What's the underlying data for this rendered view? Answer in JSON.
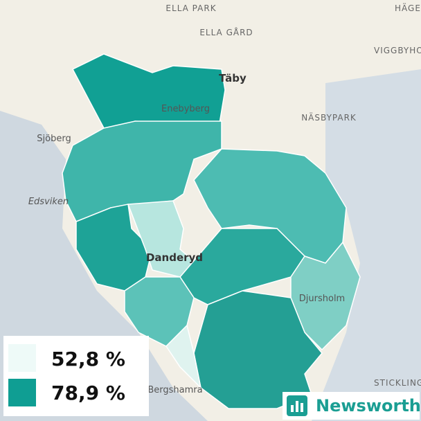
{
  "map": {
    "places": [
      "ELLA PARK",
      "HÄGER",
      "ELLA GÅRD",
      "VIGGBYHO",
      "Täby",
      "Enebyberg",
      "NÄSBYPARK",
      "Sjöberg",
      "Edsviken",
      "Danderyd",
      "Djursholm",
      "Bergshamra",
      "STICKLING"
    ],
    "legend": [
      {
        "label": "52,8 %",
        "color": "#eefaf8"
      },
      {
        "label": "78,9 %",
        "color": "#0f9e93"
      }
    ],
    "brand": "Newsworthy"
  }
}
